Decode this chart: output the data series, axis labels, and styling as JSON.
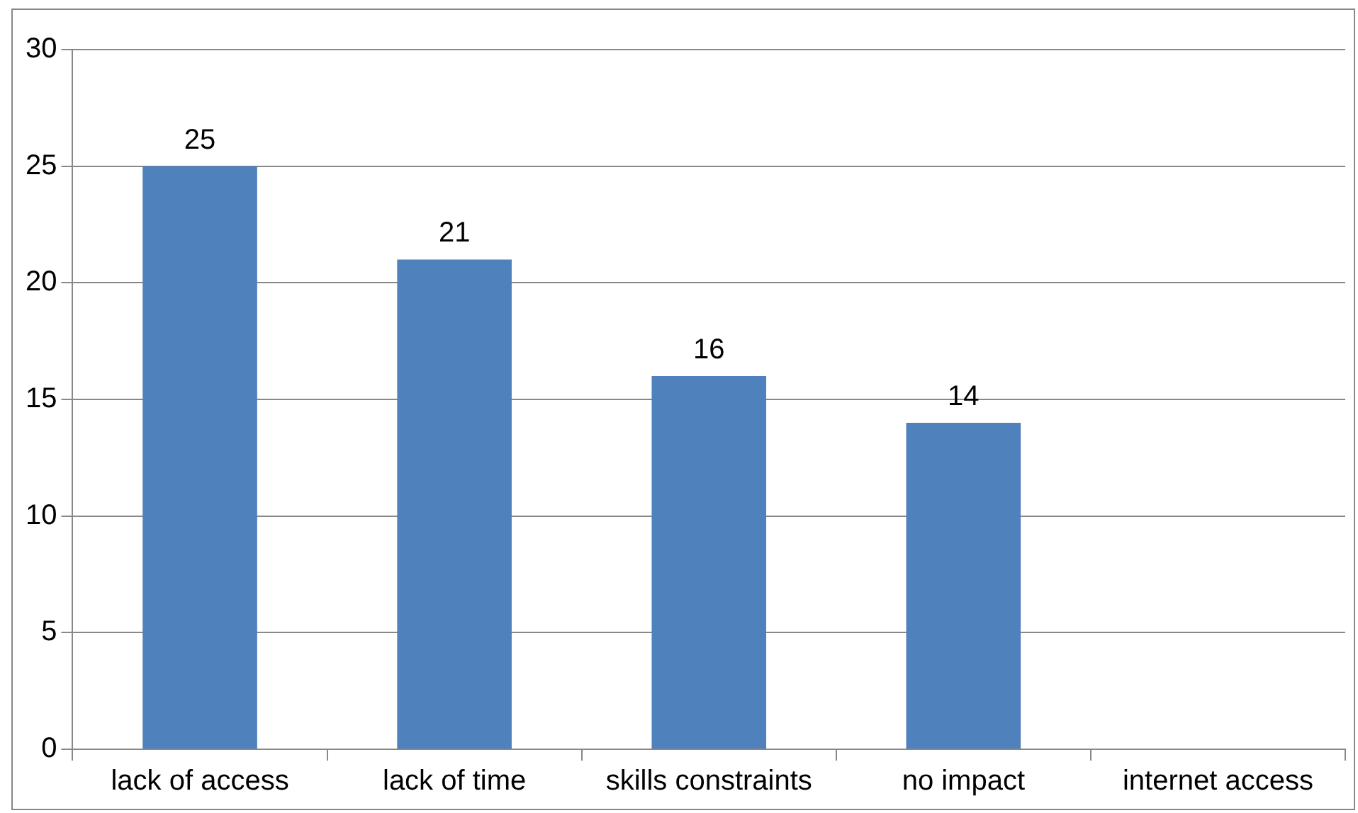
{
  "chart_data": {
    "type": "bar",
    "categories": [
      "lack of access",
      "lack of time",
      "skills constraints",
      "no impact",
      "internet access"
    ],
    "values": [
      25,
      21,
      16,
      14,
      null
    ],
    "color": "#4f81bd",
    "ylim": [
      0,
      30
    ],
    "yticks": [
      0,
      5,
      10,
      15,
      20,
      25,
      30
    ],
    "grid": "y",
    "legend": false,
    "data_labels": true
  }
}
